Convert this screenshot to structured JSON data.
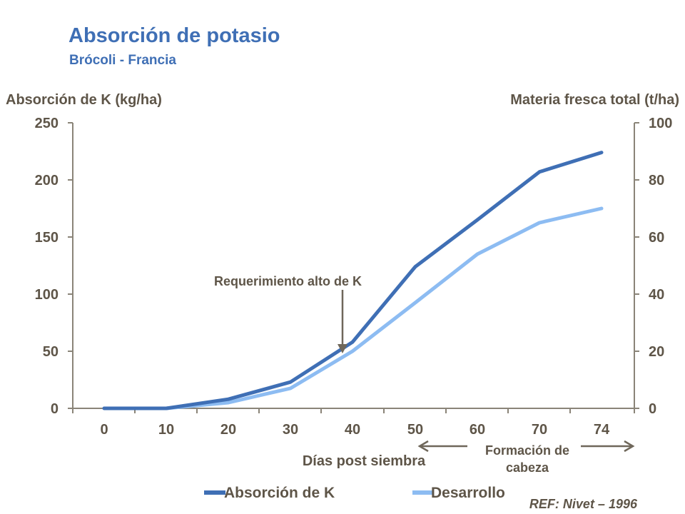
{
  "title": "Absorción de potasio",
  "subtitle": "Brócoli - Francia",
  "reference": "REF: Nivet – 1996",
  "chart_data": {
    "type": "line",
    "x_categories": [
      "0",
      "10",
      "20",
      "30",
      "40",
      "50",
      "60",
      "70",
      "74"
    ],
    "xlabel": "Días post siembra",
    "y_left": {
      "label": "Absorción de K (kg/ha)",
      "range": [
        0,
        250
      ],
      "ticks": [
        0,
        50,
        100,
        150,
        200,
        250
      ]
    },
    "y_right": {
      "label": "Materia fresca total (t/ha)",
      "range": [
        0,
        100
      ],
      "ticks": [
        0,
        20,
        40,
        60,
        80,
        100
      ]
    },
    "series": [
      {
        "name": "Absorción de K",
        "axis": "left",
        "color": "#3f6fb5",
        "values": [
          0,
          0,
          8,
          23,
          58,
          124,
          165,
          207,
          224
        ]
      },
      {
        "name": "Desarrollo",
        "axis": "right",
        "color": "#8dbcf2",
        "values": [
          0,
          0,
          2,
          7,
          20,
          37,
          54,
          65,
          70
        ]
      }
    ],
    "annotations": {
      "arrow_label": "Requerimiento alto de K",
      "phase_label_line1": "Formación de",
      "phase_label_line2": "cabeza"
    },
    "legend_position": "bottom",
    "grid": false
  }
}
